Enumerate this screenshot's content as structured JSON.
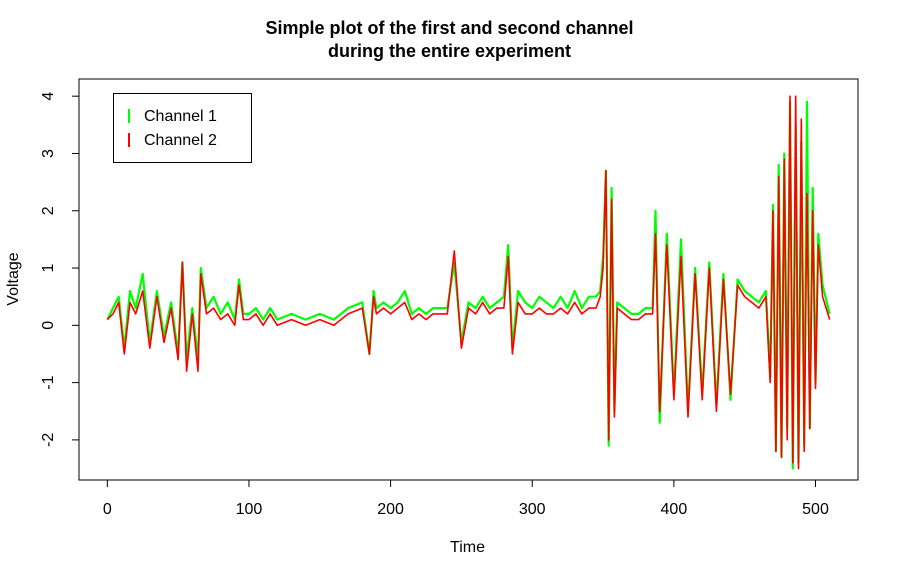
{
  "chart_data": {
    "type": "line",
    "title": "Simple plot of the first and second channel during the entire experiment",
    "title_lines": [
      "Simple plot of the first and second channel",
      "during the entire experiment"
    ],
    "xlabel": "Time",
    "ylabel": "Voltage",
    "xlim": [
      -20,
      530
    ],
    "ylim": [
      -2.7,
      4.3
    ],
    "xticks": [
      0,
      100,
      200,
      300,
      400,
      500
    ],
    "yticks": [
      -2,
      -1,
      0,
      1,
      2,
      3,
      4
    ],
    "grid": false,
    "legend": "top-left",
    "series": [
      {
        "name": "Channel 1",
        "color": "#00ff00",
        "x": [
          0,
          4,
          8,
          12,
          16,
          20,
          25,
          30,
          35,
          40,
          45,
          50,
          53,
          56,
          60,
          64,
          66,
          70,
          75,
          80,
          85,
          90,
          93,
          96,
          100,
          105,
          110,
          115,
          120,
          130,
          140,
          150,
          160,
          170,
          180,
          185,
          188,
          190,
          195,
          200,
          205,
          210,
          215,
          220,
          225,
          230,
          240,
          245,
          250,
          255,
          260,
          265,
          270,
          275,
          280,
          283,
          286,
          290,
          295,
          300,
          305,
          310,
          315,
          320,
          325,
          330,
          335,
          340,
          345,
          348,
          350,
          352,
          354,
          356,
          358,
          360,
          365,
          370,
          375,
          380,
          385,
          387,
          390,
          395,
          400,
          405,
          410,
          415,
          420,
          425,
          430,
          435,
          440,
          445,
          450,
          455,
          460,
          465,
          468,
          470,
          472,
          474,
          476,
          478,
          480,
          482,
          484,
          486,
          488,
          490,
          492,
          494,
          496,
          498,
          500,
          502,
          505,
          510
        ],
        "y": [
          0.1,
          0.3,
          0.5,
          -0.4,
          0.6,
          0.3,
          0.9,
          -0.3,
          0.6,
          -0.2,
          0.4,
          -0.5,
          1.1,
          -0.6,
          0.3,
          -0.6,
          1.0,
          0.3,
          0.5,
          0.2,
          0.4,
          0.1,
          0.8,
          0.2,
          0.2,
          0.3,
          0.1,
          0.3,
          0.1,
          0.2,
          0.1,
          0.2,
          0.1,
          0.3,
          0.4,
          -0.5,
          0.6,
          0.3,
          0.4,
          0.3,
          0.4,
          0.6,
          0.2,
          0.3,
          0.2,
          0.3,
          0.3,
          1.1,
          -0.3,
          0.4,
          0.3,
          0.5,
          0.3,
          0.4,
          0.5,
          1.4,
          -0.4,
          0.6,
          0.4,
          0.3,
          0.5,
          0.4,
          0.3,
          0.5,
          0.3,
          0.6,
          0.3,
          0.5,
          0.5,
          0.6,
          1.2,
          2.7,
          -2.1,
          2.4,
          -1.5,
          0.4,
          0.3,
          0.2,
          0.2,
          0.3,
          0.3,
          2.0,
          -1.7,
          1.6,
          -1.2,
          1.5,
          -1.5,
          1.0,
          -1.2,
          1.1,
          -1.4,
          0.9,
          -1.3,
          0.8,
          0.6,
          0.5,
          0.4,
          0.6,
          -0.9,
          2.1,
          -2.2,
          2.8,
          -2.3,
          3.0,
          -1.8,
          3.9,
          -2.5,
          3.5,
          -2.4,
          3.2,
          -2.1,
          3.9,
          -1.8,
          2.4,
          -1.0,
          1.6,
          0.7,
          0.2
        ]
      },
      {
        "name": "Channel 2",
        "color": "#ff0000",
        "x": [
          0,
          4,
          8,
          12,
          16,
          20,
          25,
          30,
          35,
          40,
          45,
          50,
          53,
          56,
          60,
          64,
          66,
          70,
          75,
          80,
          85,
          90,
          93,
          96,
          100,
          105,
          110,
          115,
          120,
          130,
          140,
          150,
          160,
          170,
          180,
          185,
          188,
          190,
          195,
          200,
          205,
          210,
          215,
          220,
          225,
          230,
          240,
          245,
          250,
          255,
          260,
          265,
          270,
          275,
          280,
          283,
          286,
          290,
          295,
          300,
          305,
          310,
          315,
          320,
          325,
          330,
          335,
          340,
          345,
          348,
          350,
          352,
          354,
          356,
          358,
          360,
          365,
          370,
          375,
          380,
          385,
          387,
          390,
          395,
          400,
          405,
          410,
          415,
          420,
          425,
          430,
          435,
          440,
          445,
          450,
          455,
          460,
          465,
          468,
          470,
          472,
          474,
          476,
          478,
          480,
          482,
          484,
          486,
          488,
          490,
          492,
          494,
          496,
          498,
          500,
          502,
          505,
          510
        ],
        "y": [
          0.1,
          0.2,
          0.4,
          -0.5,
          0.4,
          0.2,
          0.6,
          -0.4,
          0.5,
          -0.3,
          0.3,
          -0.6,
          1.1,
          -0.8,
          0.2,
          -0.8,
          0.9,
          0.2,
          0.3,
          0.1,
          0.2,
          0.0,
          0.7,
          0.1,
          0.1,
          0.2,
          0.0,
          0.2,
          0.0,
          0.1,
          0.0,
          0.1,
          0.0,
          0.2,
          0.3,
          -0.5,
          0.5,
          0.2,
          0.3,
          0.2,
          0.3,
          0.4,
          0.1,
          0.2,
          0.1,
          0.2,
          0.2,
          1.3,
          -0.4,
          0.3,
          0.2,
          0.4,
          0.2,
          0.3,
          0.3,
          1.2,
          -0.5,
          0.4,
          0.2,
          0.2,
          0.3,
          0.2,
          0.2,
          0.3,
          0.2,
          0.4,
          0.2,
          0.3,
          0.3,
          0.5,
          1.0,
          2.7,
          -2.0,
          2.2,
          -1.6,
          0.3,
          0.2,
          0.1,
          0.1,
          0.2,
          0.2,
          1.6,
          -1.5,
          1.4,
          -1.3,
          1.2,
          -1.6,
          0.9,
          -1.3,
          1.0,
          -1.5,
          0.8,
          -1.2,
          0.7,
          0.5,
          0.4,
          0.3,
          0.5,
          -1.0,
          2.0,
          -2.2,
          2.6,
          -2.3,
          2.9,
          -2.0,
          4.0,
          -2.4,
          4.0,
          -2.5,
          3.6,
          -2.2,
          2.3,
          -1.8,
          2.0,
          -1.1,
          1.4,
          0.5,
          0.1
        ]
      }
    ]
  }
}
